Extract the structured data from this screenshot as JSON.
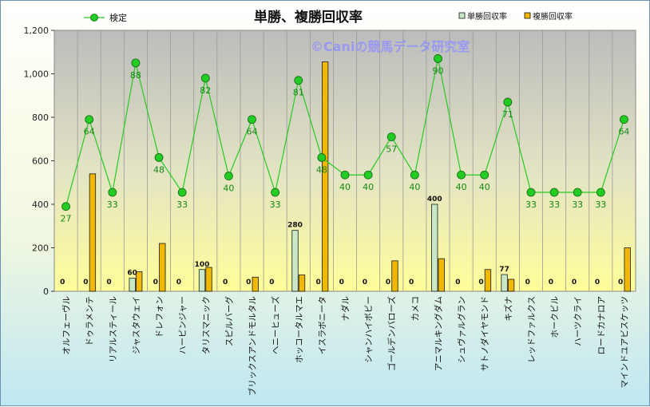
{
  "chart_data": {
    "type": "bar+line",
    "title": "単勝、複勝回収率",
    "watermark": "©Caniの競馬データ研究室",
    "ylim": [
      0,
      1200
    ],
    "yticks": [
      "0",
      "200",
      "400",
      "600",
      "800",
      "1,000",
      "1,200"
    ],
    "categories": [
      "オルフェーヴル",
      "ドゥラメンテ",
      "リアルスティール",
      "ジャスタウェイ",
      "ドレフォン",
      "ハービンジャー",
      "タリスマニック",
      "スピルバーグ",
      "ブリックスアンドモルタル",
      "ヘニーヒューズ",
      "ホッコータルマエ",
      "イスラボニータ",
      "ナダル",
      "シャンハイボビー",
      "ゴールデンバローズ",
      "カメコ",
      "アニマルキングダム",
      "シュヴァルグラン",
      "サトノダイヤモンド",
      "キズナ",
      "レッドファルクス",
      "ホークビル",
      "ハーツクライ",
      "ロードカナロア",
      "マインドユアビスケッツ"
    ],
    "series": [
      {
        "name": "単勝回収率",
        "kind": "bar",
        "color": "#c8e8c8",
        "values": [
          0,
          0,
          0,
          60,
          0,
          0,
          100,
          0,
          0,
          0,
          280,
          0,
          0,
          0,
          0,
          0,
          400,
          0,
          0,
          77,
          0,
          0,
          0,
          0,
          0
        ],
        "labels": [
          "0",
          "0",
          "0",
          "60",
          "0",
          "0",
          "100",
          "0",
          "0",
          "0",
          "280",
          "0",
          "0",
          "0",
          "0",
          "0",
          "400",
          "0",
          "0",
          "77",
          "0",
          "0",
          "0",
          "0",
          "0"
        ]
      },
      {
        "name": "複勝回収率",
        "kind": "bar",
        "color": "#f0b800",
        "values": [
          0,
          540,
          0,
          90,
          220,
          0,
          110,
          0,
          65,
          0,
          75,
          1055,
          0,
          0,
          140,
          0,
          150,
          0,
          100,
          55,
          0,
          0,
          0,
          0,
          200
        ]
      },
      {
        "name": "検定",
        "kind": "line",
        "color": "#22cc22",
        "values": [
          390,
          790,
          455,
          1050,
          615,
          455,
          980,
          530,
          790,
          455,
          970,
          615,
          535,
          535,
          710,
          535,
          1070,
          535,
          535,
          870,
          455,
          455,
          455,
          455,
          790
        ],
        "labels": [
          "27",
          "64",
          "33",
          "88",
          "48",
          "33",
          "82",
          "40",
          "64",
          "33",
          "81",
          "48",
          "40",
          "40",
          "57",
          "40",
          "90",
          "40",
          "40",
          "71",
          "33",
          "33",
          "33",
          "33",
          "64"
        ]
      }
    ]
  }
}
